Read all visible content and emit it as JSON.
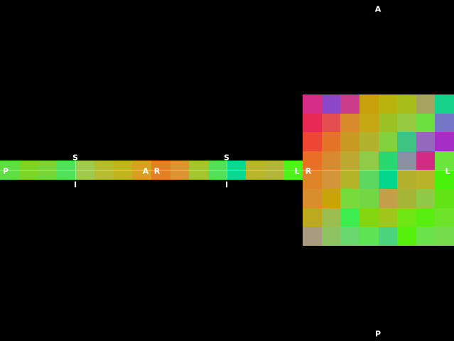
{
  "colors": {
    "background": "#000000",
    "text": "#ffffff",
    "crosshair": "#b9ff8f"
  },
  "orientation_labels": {
    "left_view": {
      "left": "P",
      "right": "A",
      "top_1": "S",
      "bottom_1": "I",
      "top_2": "S",
      "bottom_2": "I"
    },
    "middle_view": {
      "left": "R",
      "right": "L"
    },
    "right_view": {
      "top": "A",
      "bottom": "P",
      "left": "R",
      "right": "L"
    }
  },
  "views": [
    {
      "name": "sagittal-strip-1",
      "rows": 1,
      "cols": 4,
      "tiles": [
        [
          "#5fde44",
          "#7bd522",
          "#79d536",
          "#4fe05c"
        ]
      ]
    },
    {
      "name": "sagittal-strip-2",
      "rows": 1,
      "cols": 4,
      "tiles": [
        [
          "#9fca4e",
          "#b7bc2e",
          "#c0b51a",
          "#d7a01f"
        ]
      ]
    },
    {
      "name": "coronal-strip-1",
      "rows": 1,
      "cols": 4,
      "tiles": [
        [
          "#e38024",
          "#da9531",
          "#a5c52c",
          "#52e05b"
        ]
      ]
    },
    {
      "name": "coronal-strip-2",
      "rows": 1,
      "cols": 4,
      "tiles": [
        [
          "#08d990",
          "#b8b628",
          "#b3b43a",
          "#4ef318"
        ]
      ]
    },
    {
      "name": "axial-grid",
      "rows": 8,
      "cols": 8,
      "tiles": [
        [
          "#d52e87",
          "#8b46c9",
          "#c93d8b",
          "#c8a20c",
          "#b9b30d",
          "#a6bd1a",
          "#a7a461",
          "#15d38b"
        ],
        [
          "#e62a53",
          "#e44e50",
          "#d98a2b",
          "#c6a815",
          "#9bc124",
          "#95c93f",
          "#6bdf3e",
          "#7477c6"
        ],
        [
          "#ee4634",
          "#e47328",
          "#c99a22",
          "#b3b22e",
          "#82d13e",
          "#3fc383",
          "#9469bd",
          "#a62dc5"
        ],
        [
          "#ea6e25",
          "#d88a30",
          "#bca932",
          "#8fcb46",
          "#2ad872",
          "#8b8fa3",
          "#d22b86",
          "#6be43c"
        ],
        [
          "#df8528",
          "#d39539",
          "#b3b427",
          "#5cd860",
          "#02d88d",
          "#b4b12d",
          "#b9b327",
          "#49f20b"
        ],
        [
          "#d98e2d",
          "#c8a408",
          "#76db3b",
          "#73d744",
          "#c49f49",
          "#a5b535",
          "#8eca45",
          "#62e315"
        ],
        [
          "#bcaa1c",
          "#9abd4f",
          "#3ded4e",
          "#83d50e",
          "#9fc618",
          "#6ee614",
          "#57ee10",
          "#6de32a"
        ],
        [
          "#a89b7f",
          "#8fc260",
          "#68d86e",
          "#5ce452",
          "#4cd47c",
          "#56f00d",
          "#6ae34a",
          "#75dd49"
        ]
      ]
    }
  ]
}
